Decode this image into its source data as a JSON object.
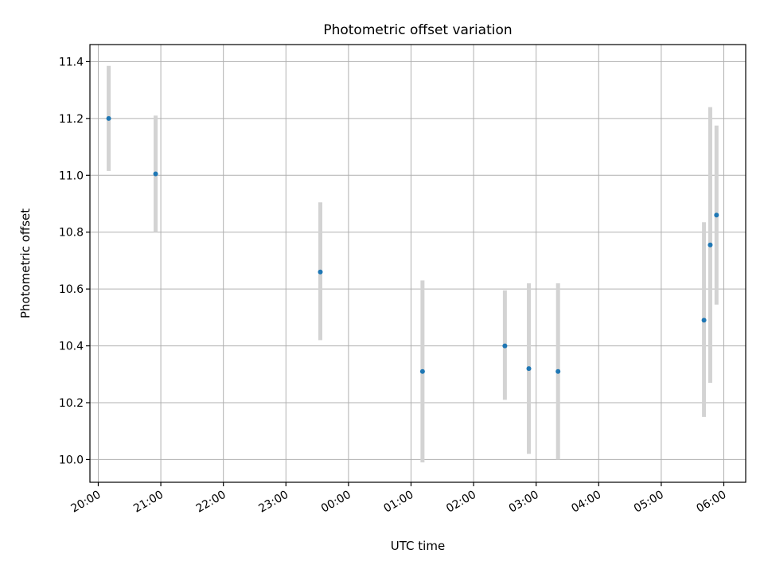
{
  "chart_data": {
    "type": "scatter",
    "title": "Photometric offset variation",
    "xlabel": "UTC time",
    "ylabel": "Photometric offset",
    "x_tick_labels": [
      "20:00",
      "21:00",
      "22:00",
      "23:00",
      "00:00",
      "01:00",
      "02:00",
      "03:00",
      "04:00",
      "05:00",
      "06:00"
    ],
    "y_tick_labels": [
      "10.0",
      "10.2",
      "10.4",
      "10.6",
      "10.8",
      "11.0",
      "11.2",
      "11.4"
    ],
    "xlim": [
      "19:52",
      "06:21"
    ],
    "ylim": [
      9.92,
      11.46
    ],
    "grid": true,
    "colors": {
      "point": "#1f77b4",
      "error_bar": "#d3d3d3"
    },
    "series": [
      {
        "points": [
          {
            "x": "20:10",
            "y": 11.2,
            "err_low": 11.015,
            "err_high": 11.385
          },
          {
            "x": "20:55",
            "y": 11.005,
            "err_low": 10.8,
            "err_high": 11.21
          },
          {
            "x": "23:33",
            "y": 10.66,
            "err_low": 10.42,
            "err_high": 10.905
          },
          {
            "x": "01:11",
            "y": 10.31,
            "err_low": 9.99,
            "err_high": 10.63
          },
          {
            "x": "02:30",
            "y": 10.4,
            "err_low": 10.21,
            "err_high": 10.595
          },
          {
            "x": "02:53",
            "y": 10.32,
            "err_low": 10.02,
            "err_high": 10.62
          },
          {
            "x": "03:21",
            "y": 10.31,
            "err_low": 10.0,
            "err_high": 10.62
          },
          {
            "x": "05:41",
            "y": 10.49,
            "err_low": 10.15,
            "err_high": 10.835
          },
          {
            "x": "05:47",
            "y": 10.755,
            "err_low": 10.27,
            "err_high": 11.24
          },
          {
            "x": "05:53",
            "y": 10.86,
            "err_low": 10.545,
            "err_high": 11.175
          }
        ]
      }
    ]
  }
}
